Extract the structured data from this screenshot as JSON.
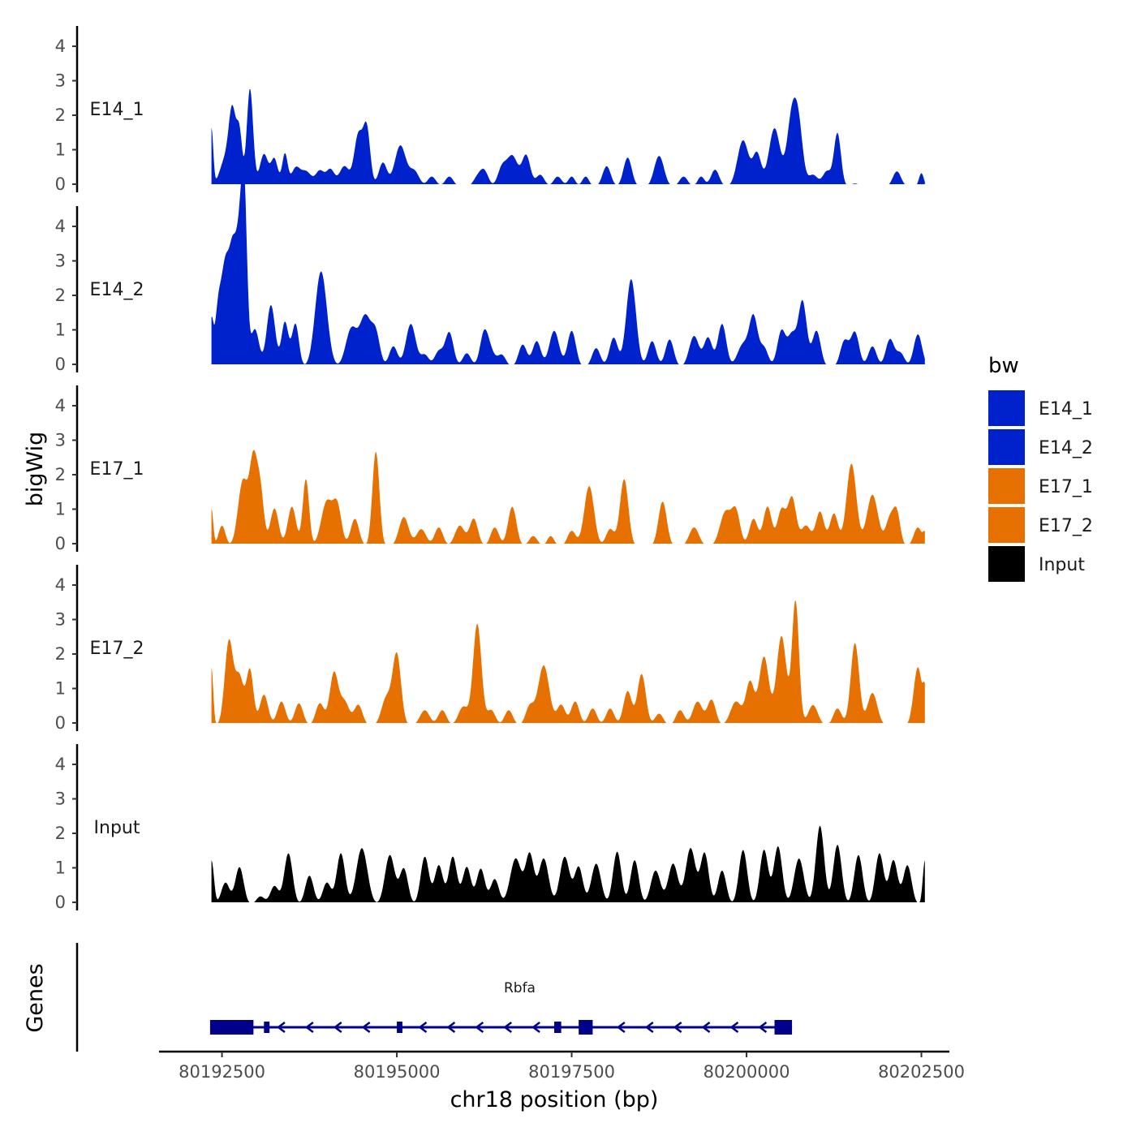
{
  "chart_data": {
    "type": "area",
    "chromosome": "chr18",
    "xlabel": "chr18 position (bp)",
    "ylabel": "bigWig",
    "genes_label": "Genes",
    "xlim": [
      80191600,
      80202900
    ],
    "data_range": [
      80192350,
      80202550
    ],
    "x_ticks": [
      80192500,
      80195000,
      80197500,
      80200000,
      80202500
    ],
    "ylim": [
      0,
      4.6
    ],
    "y_ticks": [
      0,
      1,
      2,
      3,
      4
    ],
    "legend": {
      "title": "bw",
      "entries": [
        {
          "name": "E14_1",
          "color": "#0022cc"
        },
        {
          "name": "E14_2",
          "color": "#0022cc"
        },
        {
          "name": "E17_1",
          "color": "#e67000"
        },
        {
          "name": "E17_2",
          "color": "#e67000"
        },
        {
          "name": "Input",
          "color": "#000000"
        }
      ]
    },
    "series": [
      {
        "name": "E14_1",
        "color": "#0022cc",
        "peaks": [
          [
            80192350,
            1.7,
            25
          ],
          [
            80192550,
            0.8,
            80
          ],
          [
            80192650,
            1.95,
            50
          ],
          [
            80192750,
            1.5,
            40
          ],
          [
            80192900,
            2.85,
            45
          ],
          [
            80193100,
            0.95,
            60
          ],
          [
            80193250,
            0.8,
            50
          ],
          [
            80193400,
            0.95,
            40
          ],
          [
            80193550,
            0.5,
            60
          ],
          [
            80193700,
            0.45,
            80
          ],
          [
            80193900,
            0.45,
            60
          ],
          [
            80194050,
            0.5,
            60
          ],
          [
            80194250,
            0.6,
            70
          ],
          [
            80194450,
            1.5,
            60
          ],
          [
            80194570,
            1.65,
            50
          ],
          [
            80194800,
            0.7,
            60
          ],
          [
            80195050,
            1.2,
            80
          ],
          [
            80195250,
            0.45,
            70
          ],
          [
            80195500,
            0.3,
            60
          ],
          [
            80195750,
            0.3,
            60
          ],
          [
            80196150,
            0.25,
            60
          ],
          [
            80196250,
            0.45,
            60
          ],
          [
            80196500,
            0.5,
            60
          ],
          [
            80196650,
            0.9,
            80
          ],
          [
            80196850,
            0.9,
            60
          ],
          [
            80197050,
            0.35,
            60
          ],
          [
            80197300,
            0.3,
            60
          ],
          [
            80197500,
            0.3,
            50
          ],
          [
            80197700,
            0.3,
            50
          ],
          [
            80198000,
            0.6,
            60
          ],
          [
            80198300,
            0.85,
            60
          ],
          [
            80198750,
            0.9,
            70
          ],
          [
            80199100,
            0.3,
            60
          ],
          [
            80199350,
            0.3,
            50
          ],
          [
            80199550,
            0.5,
            60
          ],
          [
            80199950,
            1.35,
            80
          ],
          [
            80200150,
            0.95,
            60
          ],
          [
            80200400,
            1.7,
            80
          ],
          [
            80200650,
            2.05,
            70
          ],
          [
            80200750,
            1.4,
            60
          ],
          [
            80200950,
            0.35,
            70
          ],
          [
            80201150,
            0.45,
            60
          ],
          [
            80201300,
            1.55,
            50
          ],
          [
            80201550,
            0.1,
            60
          ],
          [
            80202150,
            0.45,
            60
          ],
          [
            80202500,
            0.4,
            35
          ]
        ]
      },
      {
        "name": "E14_2",
        "color": "#0022cc",
        "peaks": [
          [
            80192350,
            1.2,
            25
          ],
          [
            80192450,
            1.8,
            50
          ],
          [
            80192550,
            2.6,
            50
          ],
          [
            80192650,
            3.0,
            50
          ],
          [
            80192750,
            3.4,
            50
          ],
          [
            80192820,
            4.35,
            40
          ],
          [
            80192970,
            1.1,
            60
          ],
          [
            80193200,
            1.8,
            60
          ],
          [
            80193400,
            1.3,
            50
          ],
          [
            80193550,
            1.25,
            50
          ],
          [
            80193900,
            1.9,
            80
          ],
          [
            80193950,
            1.0,
            80
          ],
          [
            80194350,
            1.1,
            80
          ],
          [
            80194550,
            1.45,
            80
          ],
          [
            80194700,
            0.9,
            60
          ],
          [
            80194950,
            0.6,
            60
          ],
          [
            80195200,
            1.25,
            70
          ],
          [
            80195400,
            0.35,
            60
          ],
          [
            80195600,
            0.45,
            60
          ],
          [
            80195750,
            1.0,
            60
          ],
          [
            80196000,
            0.4,
            60
          ],
          [
            80196250,
            1.0,
            60
          ],
          [
            80196350,
            0.35,
            60
          ],
          [
            80196500,
            0.35,
            60
          ],
          [
            80196800,
            0.65,
            60
          ],
          [
            80197000,
            0.75,
            60
          ],
          [
            80197250,
            1.05,
            70
          ],
          [
            80197500,
            1.05,
            60
          ],
          [
            80197850,
            0.55,
            60
          ],
          [
            80198100,
            0.85,
            60
          ],
          [
            80198350,
            2.55,
            70
          ],
          [
            80198650,
            0.75,
            60
          ],
          [
            80198900,
            0.8,
            60
          ],
          [
            80199250,
            0.9,
            70
          ],
          [
            80199450,
            0.85,
            60
          ],
          [
            80199650,
            1.25,
            60
          ],
          [
            80199950,
            0.65,
            80
          ],
          [
            80200100,
            1.4,
            60
          ],
          [
            80200250,
            0.55,
            60
          ],
          [
            80200500,
            1.05,
            60
          ],
          [
            80200650,
            0.9,
            60
          ],
          [
            80200800,
            1.9,
            60
          ],
          [
            80201000,
            1.05,
            60
          ],
          [
            80201400,
            0.75,
            60
          ],
          [
            80201550,
            1.0,
            60
          ],
          [
            80201800,
            0.6,
            60
          ],
          [
            80202050,
            0.8,
            60
          ],
          [
            80202200,
            0.4,
            60
          ],
          [
            80202450,
            0.95,
            60
          ]
        ]
      },
      {
        "name": "E17_1",
        "color": "#e67000",
        "peaks": [
          [
            80192350,
            1.1,
            25
          ],
          [
            80192500,
            0.6,
            50
          ],
          [
            80192800,
            1.9,
            70
          ],
          [
            80192950,
            2.4,
            55
          ],
          [
            80193050,
            1.5,
            50
          ],
          [
            80193250,
            1.1,
            60
          ],
          [
            80193500,
            1.15,
            60
          ],
          [
            80193700,
            1.95,
            45
          ],
          [
            80194000,
            1.3,
            80
          ],
          [
            80194150,
            1.1,
            60
          ],
          [
            80194400,
            0.8,
            60
          ],
          [
            80194700,
            2.75,
            50
          ],
          [
            80195100,
            0.85,
            70
          ],
          [
            80195350,
            0.5,
            70
          ],
          [
            80195600,
            0.55,
            60
          ],
          [
            80195900,
            0.6,
            70
          ],
          [
            80196100,
            0.8,
            60
          ],
          [
            80196400,
            0.55,
            60
          ],
          [
            80196650,
            1.15,
            60
          ],
          [
            80196950,
            0.3,
            60
          ],
          [
            80197200,
            0.3,
            50
          ],
          [
            80197500,
            0.45,
            60
          ],
          [
            80197750,
            1.75,
            70
          ],
          [
            80198050,
            0.5,
            60
          ],
          [
            80198250,
            1.95,
            60
          ],
          [
            80198800,
            1.3,
            60
          ],
          [
            80199250,
            0.55,
            70
          ],
          [
            80199700,
            1.0,
            80
          ],
          [
            80199850,
            0.95,
            60
          ],
          [
            80200100,
            0.8,
            60
          ],
          [
            80200300,
            1.15,
            60
          ],
          [
            80200500,
            1.05,
            60
          ],
          [
            80200650,
            1.4,
            60
          ],
          [
            80200850,
            0.6,
            70
          ],
          [
            80201050,
            1.0,
            60
          ],
          [
            80201250,
            0.95,
            60
          ],
          [
            80201500,
            2.4,
            70
          ],
          [
            80201800,
            1.5,
            80
          ],
          [
            80202050,
            0.8,
            60
          ],
          [
            80202150,
            0.9,
            50
          ],
          [
            80202450,
            0.55,
            60
          ],
          [
            80202550,
            0.3,
            25
          ]
        ]
      },
      {
        "name": "E17_2",
        "color": "#e67000",
        "peaks": [
          [
            80192350,
            1.7,
            25
          ],
          [
            80192600,
            2.45,
            60
          ],
          [
            80192750,
            1.4,
            60
          ],
          [
            80192900,
            1.6,
            50
          ],
          [
            80193100,
            0.9,
            60
          ],
          [
            80193350,
            0.7,
            60
          ],
          [
            80193600,
            0.65,
            60
          ],
          [
            80193900,
            0.65,
            60
          ],
          [
            80194100,
            1.5,
            60
          ],
          [
            80194250,
            0.7,
            70
          ],
          [
            80194450,
            0.6,
            60
          ],
          [
            80194850,
            0.8,
            70
          ],
          [
            80195000,
            2.05,
            60
          ],
          [
            80195400,
            0.45,
            70
          ],
          [
            80195650,
            0.45,
            60
          ],
          [
            80195950,
            0.55,
            70
          ],
          [
            80196150,
            2.95,
            60
          ],
          [
            80196350,
            0.45,
            60
          ],
          [
            80196600,
            0.45,
            60
          ],
          [
            80196900,
            0.55,
            60
          ],
          [
            80197100,
            1.75,
            80
          ],
          [
            80197350,
            0.6,
            60
          ],
          [
            80197550,
            0.7,
            60
          ],
          [
            80197800,
            0.5,
            60
          ],
          [
            80198050,
            0.5,
            60
          ],
          [
            80198300,
            1.0,
            60
          ],
          [
            80198500,
            1.5,
            60
          ],
          [
            80198750,
            0.35,
            60
          ],
          [
            80199050,
            0.45,
            60
          ],
          [
            80199300,
            0.7,
            70
          ],
          [
            80199500,
            0.75,
            60
          ],
          [
            80199850,
            0.7,
            80
          ],
          [
            80200050,
            1.25,
            60
          ],
          [
            80200250,
            2.0,
            70
          ],
          [
            80200500,
            2.6,
            70
          ],
          [
            80200700,
            3.6,
            50
          ],
          [
            80200950,
            0.6,
            70
          ],
          [
            80201300,
            0.5,
            60
          ],
          [
            80201550,
            2.4,
            60
          ],
          [
            80201800,
            0.95,
            70
          ],
          [
            80202450,
            1.7,
            60
          ],
          [
            80202550,
            0.8,
            25
          ]
        ]
      },
      {
        "name": "Input",
        "color": "#000000",
        "peaks": [
          [
            80192350,
            1.3,
            35
          ],
          [
            80192550,
            0.65,
            60
          ],
          [
            80192750,
            1.1,
            60
          ],
          [
            80193050,
            0.25,
            60
          ],
          [
            80193250,
            0.55,
            60
          ],
          [
            80193450,
            1.5,
            60
          ],
          [
            80193750,
            0.85,
            60
          ],
          [
            80194000,
            0.65,
            60
          ],
          [
            80194200,
            1.5,
            60
          ],
          [
            80194500,
            1.65,
            80
          ],
          [
            80194900,
            1.45,
            70
          ],
          [
            80195100,
            1.05,
            60
          ],
          [
            80195400,
            1.4,
            60
          ],
          [
            80195600,
            1.15,
            60
          ],
          [
            80195800,
            1.4,
            60
          ],
          [
            80196000,
            1.1,
            60
          ],
          [
            80196200,
            1.05,
            60
          ],
          [
            80196400,
            0.75,
            60
          ],
          [
            80196700,
            1.35,
            80
          ],
          [
            80196900,
            1.45,
            60
          ],
          [
            80197100,
            1.35,
            70
          ],
          [
            80197400,
            1.4,
            70
          ],
          [
            80197600,
            1.1,
            60
          ],
          [
            80197850,
            1.2,
            70
          ],
          [
            80198150,
            1.55,
            60
          ],
          [
            80198400,
            1.3,
            60
          ],
          [
            80198700,
            1.0,
            70
          ],
          [
            80198950,
            1.2,
            70
          ],
          [
            80199200,
            1.65,
            70
          ],
          [
            80199400,
            1.5,
            60
          ],
          [
            80199650,
            1.0,
            60
          ],
          [
            80199950,
            1.6,
            60
          ],
          [
            80200250,
            1.6,
            60
          ],
          [
            80200450,
            1.7,
            60
          ],
          [
            80200750,
            1.35,
            70
          ],
          [
            80201050,
            2.3,
            60
          ],
          [
            80201300,
            1.75,
            60
          ],
          [
            80201600,
            1.45,
            60
          ],
          [
            80201900,
            1.5,
            60
          ],
          [
            80202100,
            1.3,
            60
          ],
          [
            80202300,
            1.15,
            60
          ],
          [
            80202550,
            1.3,
            30
          ]
        ]
      }
    ],
    "gene": {
      "name": "Rbfa",
      "strand": "-",
      "color": "#00008b",
      "start": 80192330,
      "end": 80200650,
      "exons": [
        [
          80192330,
          80192950
        ],
        [
          80193100,
          80193180
        ],
        [
          80195000,
          80195080
        ],
        [
          80197250,
          80197350
        ],
        [
          80197600,
          80197800
        ],
        [
          80200400,
          80200650
        ]
      ]
    }
  }
}
